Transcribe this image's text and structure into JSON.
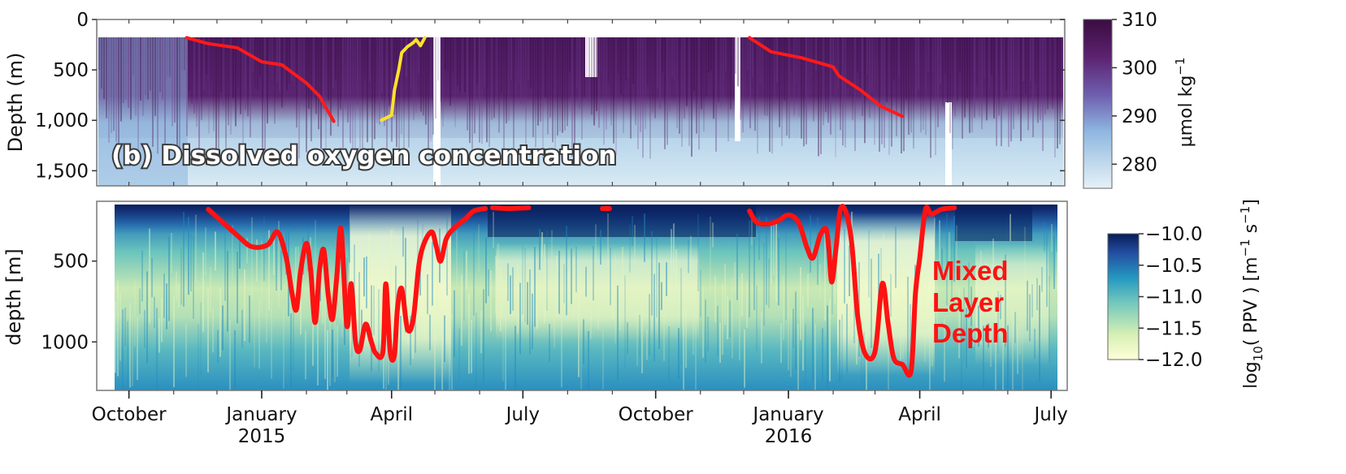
{
  "chart_data": [
    {
      "type": "heatmap",
      "panel_title": "(b) Dissolved oxygen concentration",
      "ylabel": "Depth (m)",
      "y_ticks": [
        "0",
        "500",
        "1,000",
        "1,500"
      ],
      "y_tick_values": [
        0,
        500,
        1000,
        1500
      ],
      "ylim": [
        1650,
        0
      ],
      "colorbar": {
        "label_base": "µmol kg",
        "label_exp": "−1",
        "ticks": [
          "310",
          "300",
          "290",
          "280"
        ],
        "tick_values": [
          310,
          300,
          290,
          280
        ],
        "range": [
          275,
          310
        ],
        "colors": [
          "#e6f1f7",
          "#8db6e0",
          "#6f5fb0",
          "#5c2270",
          "#3a0c40"
        ]
      },
      "series": [
        {
          "color": "#ff1a1a",
          "points": [
            [
              "2014-11-10",
              180
            ],
            [
              "2014-11-25",
              240
            ],
            [
              "2014-12-15",
              280
            ],
            [
              "2015-01-01",
              420
            ],
            [
              "2015-01-15",
              450
            ],
            [
              "2015-02-01",
              630
            ],
            [
              "2015-02-10",
              760
            ],
            [
              "2015-02-20",
              1010
            ]
          ]
        },
        {
          "color": "#ffe12e",
          "points": [
            [
              "2015-03-25",
              1000
            ],
            [
              "2015-04-01",
              950
            ],
            [
              "2015-04-03",
              700
            ],
            [
              "2015-04-06",
              500
            ],
            [
              "2015-04-08",
              330
            ],
            [
              "2015-04-12",
              270
            ],
            [
              "2015-04-16",
              230
            ],
            [
              "2015-04-18",
              200
            ],
            [
              "2015-04-21",
              260
            ],
            [
              "2015-04-24",
              180
            ]
          ]
        },
        {
          "color": "#ff1a1a",
          "points": [
            [
              "2015-12-05",
              180
            ],
            [
              "2015-12-20",
              320
            ],
            [
              "2016-01-10",
              380
            ],
            [
              "2016-02-01",
              470
            ],
            [
              "2016-02-05",
              560
            ],
            [
              "2016-02-20",
              700
            ],
            [
              "2016-03-05",
              860
            ],
            [
              "2016-03-20",
              960
            ]
          ]
        }
      ]
    },
    {
      "type": "heatmap",
      "ylabel": "depth [m]",
      "y_ticks": [
        "500",
        "1000"
      ],
      "y_tick_values": [
        500,
        1000
      ],
      "ylim": [
        1300,
        130
      ],
      "x_ticks": [
        "October",
        "January\n2015",
        "April",
        "July",
        "October",
        "January\n2016",
        "April",
        "July"
      ],
      "x_tick_dates": [
        "2014-10-01",
        "2015-01-01",
        "2015-04-01",
        "2015-07-01",
        "2015-10-01",
        "2016-01-01",
        "2016-04-01",
        "2016-07-01"
      ],
      "xlim": [
        "2014-09-16",
        "2016-07-15"
      ],
      "colorbar": {
        "label": "log10( PPV ) [m−1 s−1]",
        "ticks": [
          "−10.0",
          "−10.5",
          "−11.0",
          "−11.5",
          "−12.0"
        ],
        "tick_values": [
          -10.0,
          -10.5,
          -11.0,
          -11.5,
          -12.0
        ],
        "range": [
          -12.0,
          -10.0
        ],
        "colors": [
          "#ffffd9",
          "#d6efb3",
          "#73c8bd",
          "#2498c1",
          "#234da0",
          "#081d58"
        ]
      },
      "annotation": [
        "Mixed",
        "Layer",
        "Depth"
      ],
      "series": [
        {
          "name": "Mixed Layer Depth",
          "color": "#ff1212",
          "segments": [
            [
              [
                "2014-11-25",
                180
              ],
              [
                "2014-12-05",
                260
              ],
              [
                "2014-12-15",
                340
              ],
              [
                "2014-12-25",
                410
              ],
              [
                "2015-01-05",
                400
              ],
              [
                "2015-01-12",
                320
              ],
              [
                "2015-01-18",
                480
              ],
              [
                "2015-01-22",
                700
              ],
              [
                "2015-01-25",
                800
              ],
              [
                "2015-01-28",
                560
              ],
              [
                "2015-02-01",
                390
              ],
              [
                "2015-02-04",
                560
              ],
              [
                "2015-02-07",
                880
              ],
              [
                "2015-02-10",
                560
              ],
              [
                "2015-02-13",
                430
              ],
              [
                "2015-02-16",
                700
              ],
              [
                "2015-02-19",
                860
              ],
              [
                "2015-02-22",
                600
              ],
              [
                "2015-02-25",
                300
              ],
              [
                "2015-03-01",
                900
              ],
              [
                "2015-03-04",
                640
              ],
              [
                "2015-03-07",
                1000
              ],
              [
                "2015-03-10",
                1050
              ],
              [
                "2015-03-14",
                890
              ],
              [
                "2015-03-18",
                1000
              ],
              [
                "2015-03-21",
                1070
              ],
              [
                "2015-03-26",
                1060
              ],
              [
                "2015-03-28",
                640
              ],
              [
                "2015-03-31",
                1060
              ],
              [
                "2015-04-03",
                1080
              ],
              [
                "2015-04-05",
                800
              ],
              [
                "2015-04-08",
                670
              ],
              [
                "2015-04-12",
                920
              ],
              [
                "2015-04-16",
                860
              ],
              [
                "2015-04-20",
                520
              ],
              [
                "2015-04-24",
                380
              ],
              [
                "2015-04-29",
                320
              ],
              [
                "2015-05-02",
                410
              ],
              [
                "2015-05-05",
                500
              ],
              [
                "2015-05-09",
                360
              ],
              [
                "2015-05-15",
                290
              ],
              [
                "2015-05-22",
                240
              ],
              [
                "2015-05-28",
                190
              ],
              [
                "2015-06-05",
                175
              ]
            ],
            [
              [
                "2015-06-10",
                170
              ],
              [
                "2015-06-20",
                175
              ],
              [
                "2015-07-05",
                170
              ]
            ],
            [
              [
                "2015-08-25",
                175
              ],
              [
                "2015-08-30",
                175
              ]
            ],
            [
              [
                "2015-12-05",
                190
              ],
              [
                "2015-12-10",
                260
              ],
              [
                "2015-12-18",
                270
              ],
              [
                "2015-12-25",
                250
              ],
              [
                "2016-01-01",
                215
              ],
              [
                "2016-01-08",
                260
              ],
              [
                "2016-01-14",
                420
              ],
              [
                "2016-01-18",
                480
              ],
              [
                "2016-01-23",
                340
              ],
              [
                "2016-01-27",
                300
              ],
              [
                "2016-01-29",
                420
              ],
              [
                "2016-01-31",
                630
              ],
              [
                "2016-02-03",
                420
              ],
              [
                "2016-02-06",
                180
              ],
              [
                "2016-02-10",
                200
              ],
              [
                "2016-02-14",
                400
              ],
              [
                "2016-02-18",
                840
              ],
              [
                "2016-02-23",
                1070
              ],
              [
                "2016-03-01",
                1060
              ],
              [
                "2016-03-06",
                640
              ],
              [
                "2016-03-10",
                880
              ],
              [
                "2016-03-14",
                1100
              ],
              [
                "2016-03-20",
                1140
              ],
              [
                "2016-03-26",
                1180
              ],
              [
                "2016-03-29",
                700
              ],
              [
                "2016-04-01",
                480
              ],
              [
                "2016-04-05",
                180
              ],
              [
                "2016-04-09",
                210
              ],
              [
                "2016-04-16",
                180
              ],
              [
                "2016-04-25",
                170
              ]
            ]
          ]
        }
      ]
    }
  ]
}
